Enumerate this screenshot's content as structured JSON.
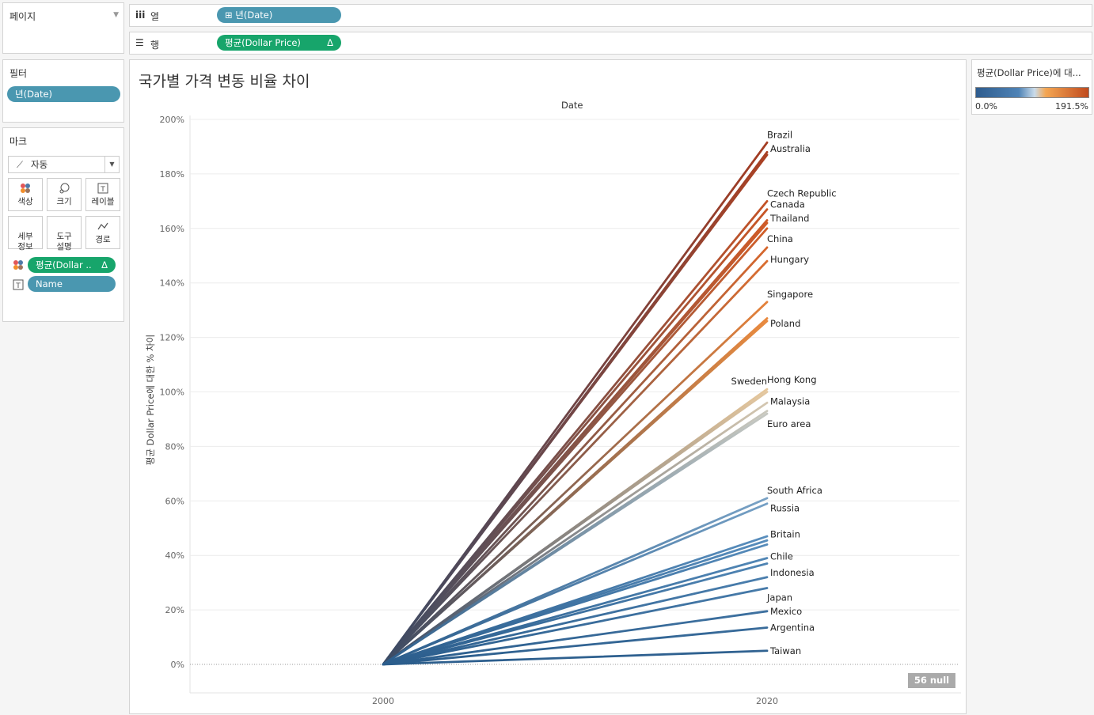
{
  "pages_card": {
    "title": "페이지"
  },
  "shelves": {
    "columns": {
      "icon": "iii",
      "label": "열",
      "pill": "⊞ 년(Date)"
    },
    "rows": {
      "icon": "☰",
      "label": "행",
      "pill": "평균(Dollar Price)",
      "pill_badge": "Δ"
    }
  },
  "filters_card": {
    "title": "필터",
    "pill": "년(Date)"
  },
  "marks_card": {
    "title": "마크",
    "type_select": "자동",
    "buttons": [
      {
        "label": "색상",
        "icon": "color-icon"
      },
      {
        "label": "크기",
        "icon": "size-icon"
      },
      {
        "label": "레이블",
        "icon": "label-icon"
      },
      {
        "label": "세부\n정보",
        "icon": "detail-icon"
      },
      {
        "label": "도구\n설명",
        "icon": "tooltip-icon"
      },
      {
        "label": "경로",
        "icon": "path-icon"
      }
    ],
    "fields": [
      {
        "label": "평균(Dollar ..",
        "badge": "Δ",
        "icon": "color-icon"
      },
      {
        "label": "Name",
        "icon": "label-icon"
      }
    ]
  },
  "legend": {
    "title": "평균(Dollar Price)에 대...",
    "min_label": "0.0%",
    "max_label": "191.5%",
    "colors": [
      "#2e5c8e",
      "#4f83b6",
      "#c9dbea",
      "#f4a652",
      "#c04a1e"
    ]
  },
  "view": {
    "title": "국가별 가격 변동 비율 차이",
    "column_header": "Date",
    "null_badge": "56 null"
  },
  "chart_data": {
    "type": "line",
    "x": [
      2000,
      2020
    ],
    "xlabel": "",
    "ylabel": "평균 Dollar Price에 대한 % 차이",
    "ylim": [
      -10,
      200
    ],
    "y_ticks": [
      "0%",
      "20%",
      "40%",
      "60%",
      "80%",
      "100%",
      "120%",
      "140%",
      "160%",
      "180%",
      "200%"
    ],
    "x_ticks": [
      "2000",
      "2020"
    ],
    "color_range": [
      0,
      191.5
    ],
    "series": [
      {
        "name": "Brazil",
        "values": [
          0,
          191.5
        ]
      },
      {
        "name": "",
        "values": [
          0,
          188
        ]
      },
      {
        "name": "Australia",
        "values": [
          0,
          187
        ]
      },
      {
        "name": "Czech Republic",
        "values": [
          0,
          170
        ]
      },
      {
        "name": "Canada",
        "values": [
          0,
          167
        ]
      },
      {
        "name": "",
        "values": [
          0,
          163
        ]
      },
      {
        "name": "Thailand",
        "values": [
          0,
          162
        ]
      },
      {
        "name": "China",
        "values": [
          0,
          160
        ]
      },
      {
        "name": "",
        "values": [
          0,
          153
        ]
      },
      {
        "name": "Hungary",
        "values": [
          0,
          148
        ]
      },
      {
        "name": "Singapore",
        "values": [
          0,
          133
        ]
      },
      {
        "name": "",
        "values": [
          0,
          127
        ]
      },
      {
        "name": "Poland",
        "values": [
          0,
          126
        ]
      },
      {
        "name": "Hong Kong",
        "values": [
          0,
          101
        ]
      },
      {
        "name": "Sweden",
        "values": [
          0,
          100
        ]
      },
      {
        "name": "Malaysia",
        "values": [
          0,
          96
        ]
      },
      {
        "name": "",
        "values": [
          0,
          93
        ]
      },
      {
        "name": "Euro area",
        "values": [
          0,
          92
        ]
      },
      {
        "name": "South Africa",
        "values": [
          0,
          61
        ]
      },
      {
        "name": "Russia",
        "values": [
          0,
          59
        ]
      },
      {
        "name": "",
        "values": [
          0,
          47
        ]
      },
      {
        "name": "Britain",
        "values": [
          0,
          45.5
        ]
      },
      {
        "name": "",
        "values": [
          0,
          44
        ]
      },
      {
        "name": "Chile",
        "values": [
          0,
          39
        ]
      },
      {
        "name": "",
        "values": [
          0,
          37
        ]
      },
      {
        "name": "Indonesia",
        "values": [
          0,
          32
        ]
      },
      {
        "name": "Japan",
        "values": [
          0,
          28
        ]
      },
      {
        "name": "Mexico",
        "values": [
          0,
          19.5
        ]
      },
      {
        "name": "Argentina",
        "values": [
          0,
          13.5
        ]
      },
      {
        "name": "Taiwan",
        "values": [
          0,
          5
        ]
      }
    ]
  }
}
